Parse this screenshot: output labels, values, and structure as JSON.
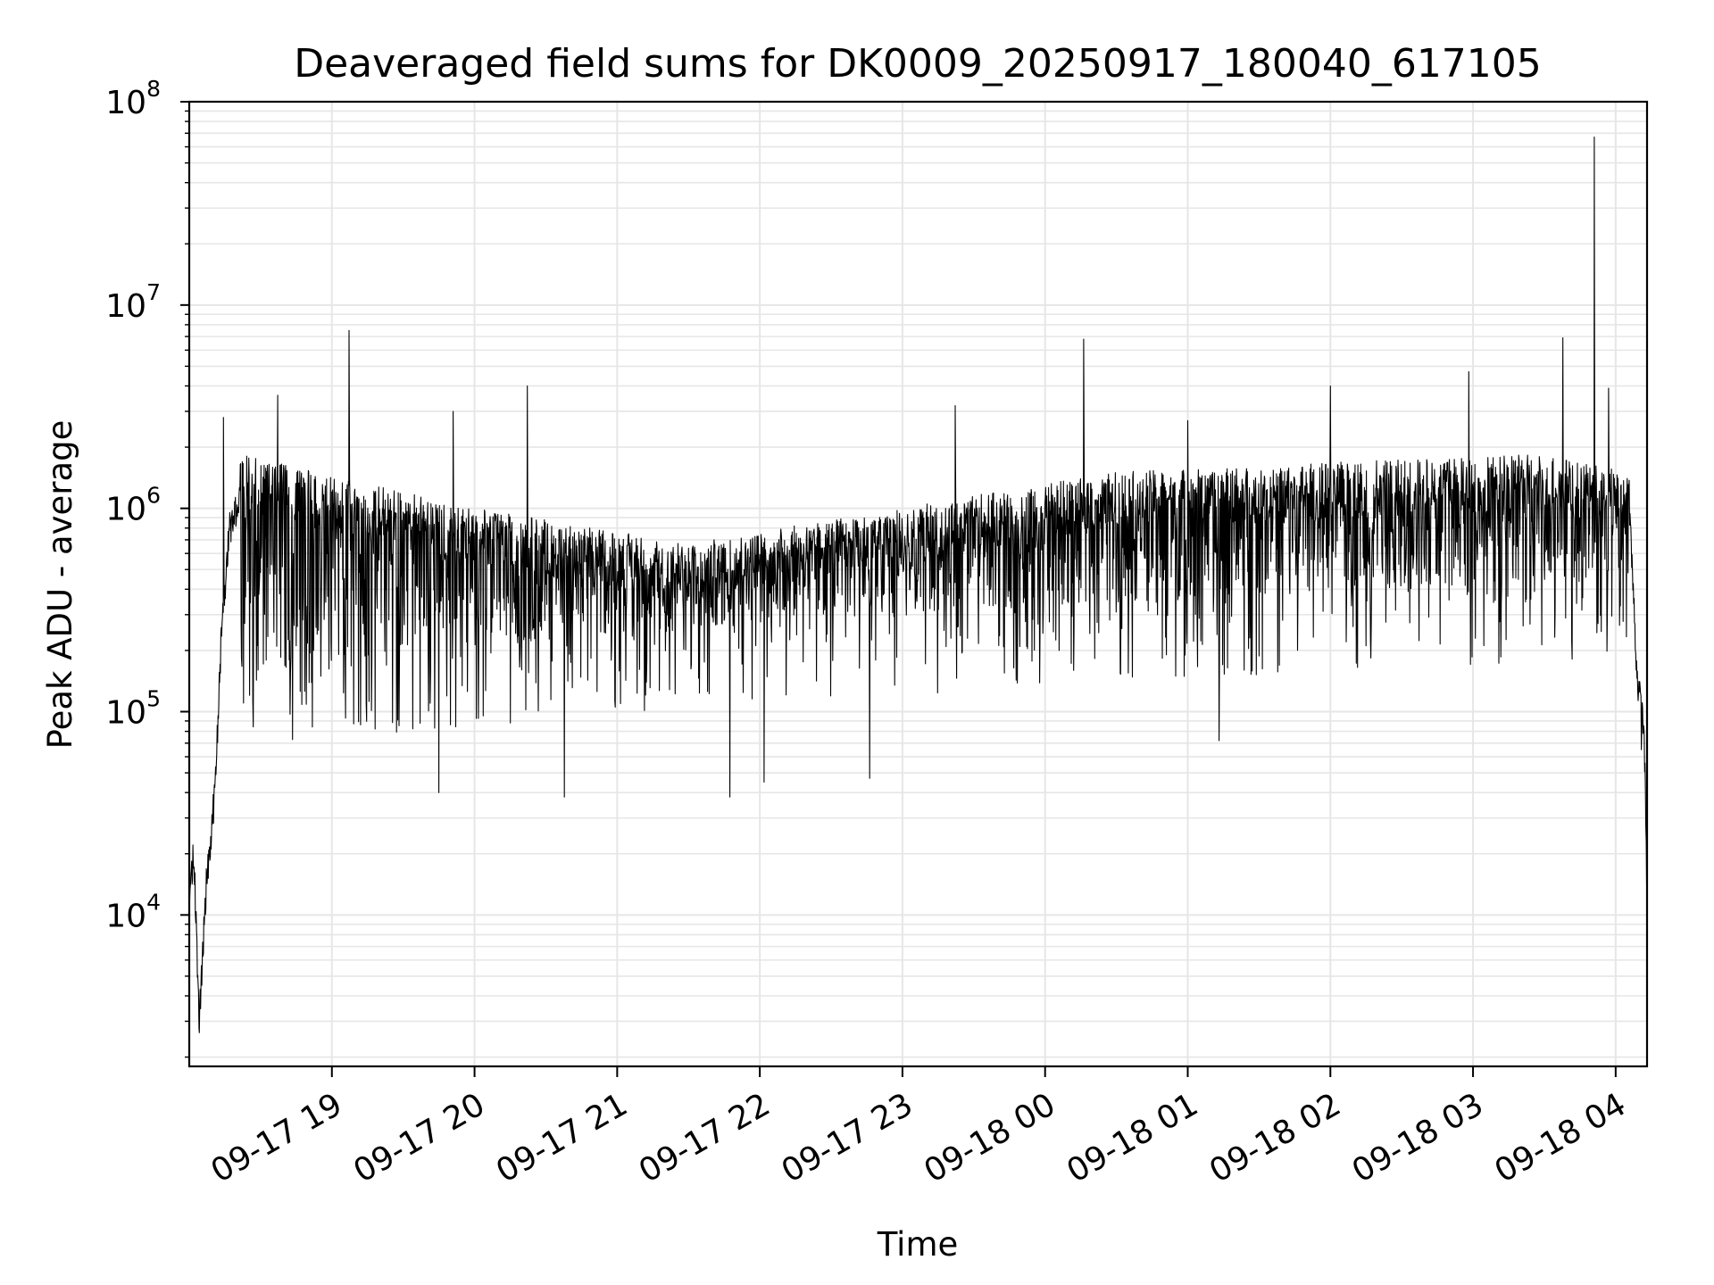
{
  "chart_data": {
    "type": "line",
    "title": "Deaveraged field sums for DK0009_20250917_180040_617105",
    "xlabel": "Time",
    "ylabel": "Peak ADU - average",
    "y_scale": "log",
    "ylim": [
      1800,
      100000000
    ],
    "x_hours_range": [
      18.0,
      28.22
    ],
    "y_major_ticks": [
      {
        "value": 10000,
        "base": "10",
        "exp": "4"
      },
      {
        "value": 100000,
        "base": "10",
        "exp": "5"
      },
      {
        "value": 1000000,
        "base": "10",
        "exp": "6"
      },
      {
        "value": 10000000,
        "base": "10",
        "exp": "7"
      },
      {
        "value": 100000000,
        "base": "10",
        "exp": "8"
      }
    ],
    "x_ticks": [
      {
        "hour": 19,
        "label": "09-17 19"
      },
      {
        "hour": 20,
        "label": "09-17 20"
      },
      {
        "hour": 21,
        "label": "09-17 21"
      },
      {
        "hour": 22,
        "label": "09-17 22"
      },
      {
        "hour": 23,
        "label": "09-17 23"
      },
      {
        "hour": 24,
        "label": "09-18 00"
      },
      {
        "hour": 25,
        "label": "09-18 01"
      },
      {
        "hour": 26,
        "label": "09-18 02"
      },
      {
        "hour": 27,
        "label": "09-18 03"
      },
      {
        "hour": 28,
        "label": "09-18 04"
      }
    ],
    "series": [
      {
        "name": "Peak ADU - average",
        "color": "#000000",
        "description": "noisy time series, ~1e5-1.5e6 band",
        "anchor_points": [
          {
            "hour": 18.0,
            "value": 10000
          },
          {
            "hour": 18.03,
            "value": 22000
          },
          {
            "hour": 18.07,
            "value": 2900
          },
          {
            "hour": 18.12,
            "value": 15000
          },
          {
            "hour": 18.18,
            "value": 40000
          },
          {
            "hour": 18.22,
            "value": 200000
          },
          {
            "hour": 18.28,
            "value": 800000
          },
          {
            "hour": 18.35,
            "value": 1100000
          },
          {
            "hour": 20.0,
            "value": 600000
          },
          {
            "hour": 21.5,
            "value": 400000
          },
          {
            "hour": 23.0,
            "value": 600000
          },
          {
            "hour": 24.5,
            "value": 900000
          },
          {
            "hour": 26.0,
            "value": 1000000
          },
          {
            "hour": 27.5,
            "value": 1100000
          },
          {
            "hour": 28.1,
            "value": 900000
          },
          {
            "hour": 28.15,
            "value": 150000
          },
          {
            "hour": 28.2,
            "value": 80000
          },
          {
            "hour": 28.22,
            "value": 13000
          }
        ],
        "spikes": [
          {
            "hour": 18.24,
            "value": 2800000
          },
          {
            "hour": 18.62,
            "value": 3600000
          },
          {
            "hour": 19.12,
            "value": 7500000
          },
          {
            "hour": 19.85,
            "value": 3000000
          },
          {
            "hour": 20.37,
            "value": 4000000
          },
          {
            "hour": 23.37,
            "value": 3200000
          },
          {
            "hour": 24.27,
            "value": 6800000
          },
          {
            "hour": 25.0,
            "value": 2700000
          },
          {
            "hour": 26.0,
            "value": 4000000
          },
          {
            "hour": 26.97,
            "value": 4700000
          },
          {
            "hour": 27.63,
            "value": 6900000
          },
          {
            "hour": 27.85,
            "value": 67000000
          },
          {
            "hour": 27.95,
            "value": 3900000
          }
        ],
        "dips": [
          {
            "hour": 19.75,
            "value": 40000
          },
          {
            "hour": 20.63,
            "value": 38000
          },
          {
            "hour": 21.79,
            "value": 38000
          },
          {
            "hour": 22.03,
            "value": 45000
          },
          {
            "hour": 22.77,
            "value": 47000
          },
          {
            "hour": 25.22,
            "value": 72000
          },
          {
            "hour": 28.18,
            "value": 65000
          }
        ]
      }
    ],
    "grid": true,
    "grid_color": "#e6e6e6",
    "line_color": "#000000"
  }
}
